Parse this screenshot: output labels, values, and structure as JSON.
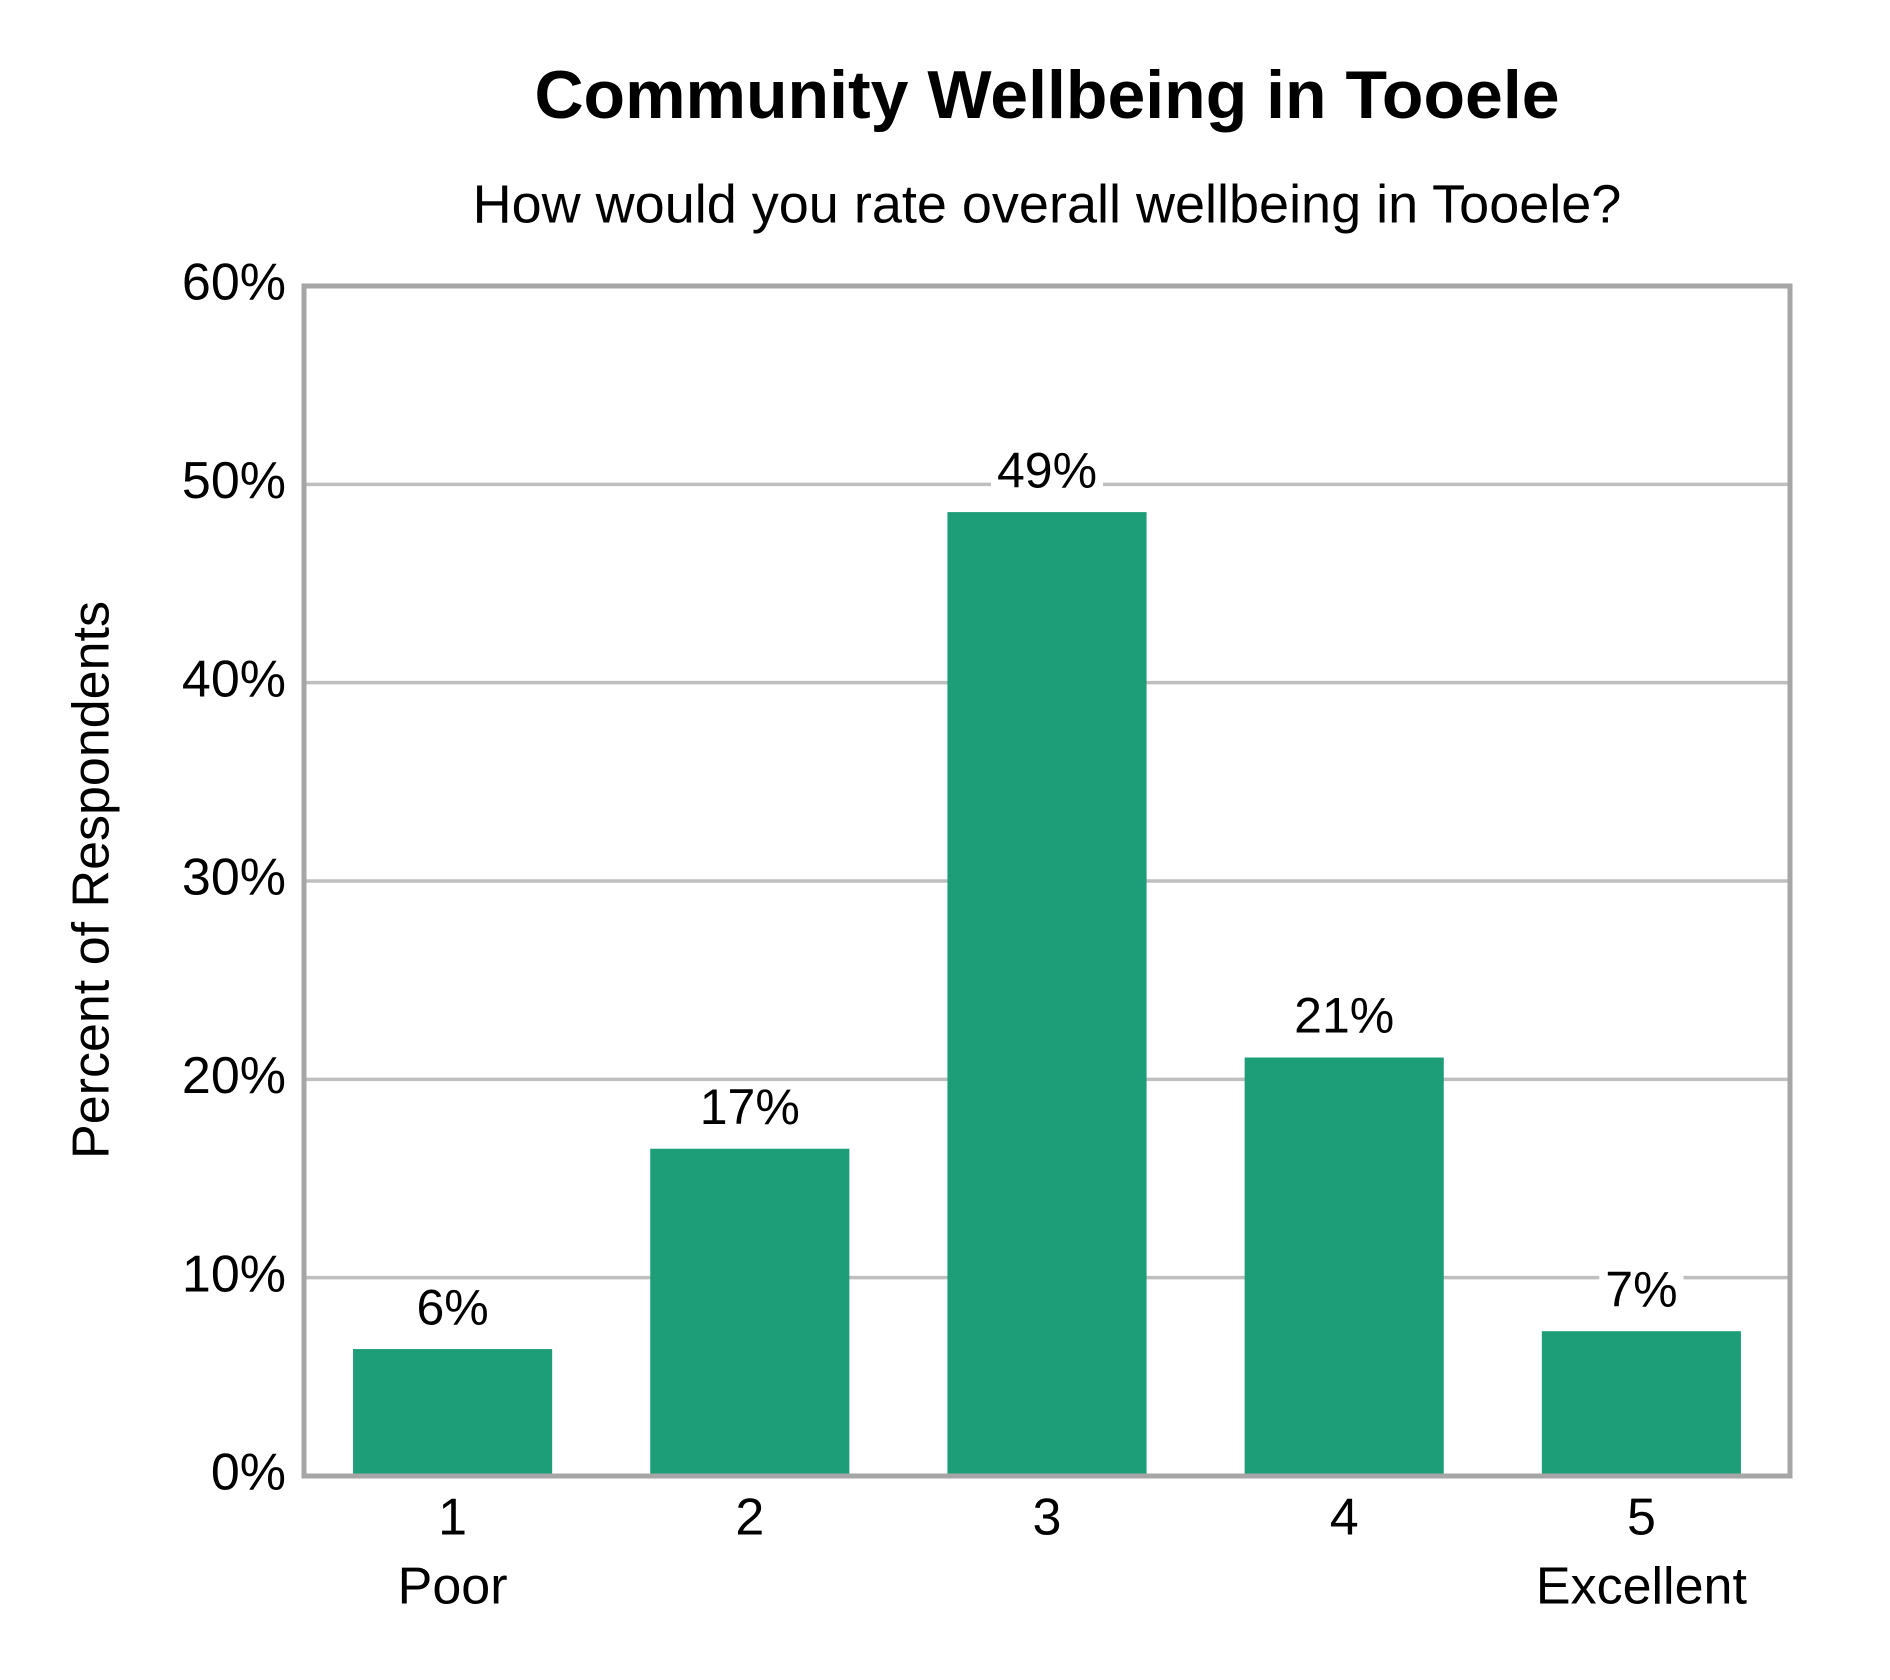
{
  "chart_data": {
    "type": "bar",
    "title": "Community Wellbeing in Tooele",
    "subtitle": "How would you rate overall wellbeing in Tooele?",
    "y_label": "Percent of Respondents",
    "categories": [
      "1",
      "2",
      "3",
      "4",
      "5"
    ],
    "category_sublabels": [
      "Poor",
      null,
      null,
      null,
      "Excellent"
    ],
    "values": [
      6.4,
      16.5,
      48.6,
      21.1,
      7.3
    ],
    "value_labels": [
      "6%",
      "17%",
      "49%",
      "21%",
      "7%"
    ],
    "color": "#1e9e78",
    "ylim": [
      0,
      60
    ],
    "yticks": [
      {
        "value": 0,
        "label": "0%"
      },
      {
        "value": 10,
        "label": "10%"
      },
      {
        "value": 20,
        "label": "20%"
      },
      {
        "value": 30,
        "label": "30%"
      },
      {
        "value": 40,
        "label": "40%"
      },
      {
        "value": 50,
        "label": "50%"
      },
      {
        "value": 60,
        "label": "60%"
      }
    ],
    "grid": true
  }
}
